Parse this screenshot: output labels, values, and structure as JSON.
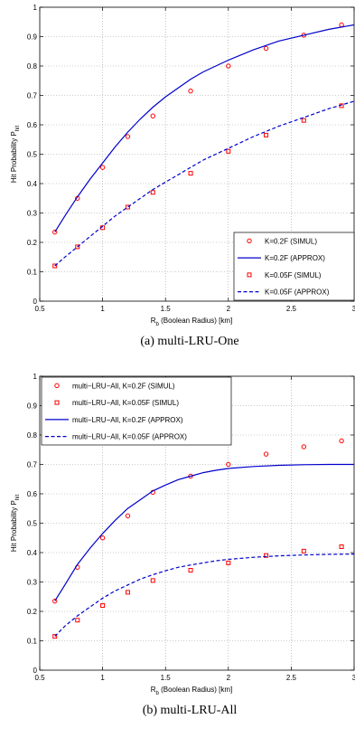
{
  "chart_data": [
    {
      "type": "line",
      "caption": "(a)  multi-LRU-One",
      "xlabel_main": "R",
      "xlabel_sub": "b",
      "xlabel_rest": " (Boolean Radius) [km]",
      "ylabel_main": "Hit Probability P",
      "ylabel_sub": "hit",
      "xlim": [
        0.5,
        3
      ],
      "ylim": [
        0,
        1
      ],
      "xticks": [
        "0.5",
        "1",
        "1.5",
        "2",
        "2.5",
        "3"
      ],
      "yticks": [
        "0",
        "0.1",
        "0.2",
        "0.3",
        "0.4",
        "0.5",
        "0.6",
        "0.7",
        "0.8",
        "0.9",
        "1"
      ],
      "grid": true,
      "legend_position": "bottom-right",
      "series": [
        {
          "name": "K=0.2F (SIMUL)",
          "kind": "circle",
          "color": "#ff0000",
          "x": [
            0.62,
            0.8,
            1.0,
            1.2,
            1.4,
            1.7,
            2.0,
            2.3,
            2.6,
            2.9
          ],
          "y": [
            0.235,
            0.35,
            0.455,
            0.56,
            0.63,
            0.715,
            0.8,
            0.86,
            0.905,
            0.94
          ]
        },
        {
          "name": "K=0.2F (APPROX)",
          "kind": "solid",
          "color": "#0000cc",
          "x": [
            0.62,
            0.7,
            0.8,
            0.9,
            1.0,
            1.1,
            1.2,
            1.3,
            1.4,
            1.5,
            1.6,
            1.7,
            1.8,
            1.9,
            2.0,
            2.2,
            2.4,
            2.6,
            2.8,
            3.0
          ],
          "y": [
            0.235,
            0.29,
            0.355,
            0.415,
            0.47,
            0.525,
            0.575,
            0.62,
            0.66,
            0.695,
            0.725,
            0.755,
            0.78,
            0.8,
            0.82,
            0.855,
            0.885,
            0.905,
            0.925,
            0.94
          ]
        },
        {
          "name": "K=0.05F (SIMUL)",
          "kind": "square",
          "color": "#ff0000",
          "x": [
            0.62,
            0.8,
            1.0,
            1.2,
            1.4,
            1.7,
            2.0,
            2.3,
            2.6,
            2.9
          ],
          "y": [
            0.12,
            0.185,
            0.25,
            0.32,
            0.37,
            0.435,
            0.51,
            0.565,
            0.615,
            0.665
          ]
        },
        {
          "name": "K=0.05F (APPROX)",
          "kind": "dashed",
          "color": "#0000cc",
          "x": [
            0.62,
            0.7,
            0.8,
            0.9,
            1.0,
            1.1,
            1.2,
            1.3,
            1.4,
            1.5,
            1.6,
            1.7,
            1.8,
            1.9,
            2.0,
            2.2,
            2.4,
            2.6,
            2.8,
            3.0
          ],
          "y": [
            0.12,
            0.15,
            0.185,
            0.22,
            0.255,
            0.29,
            0.32,
            0.35,
            0.38,
            0.405,
            0.43,
            0.455,
            0.48,
            0.5,
            0.52,
            0.56,
            0.595,
            0.625,
            0.655,
            0.68
          ]
        }
      ]
    },
    {
      "type": "line",
      "caption": "(b)  multi-LRU-All",
      "xlabel_main": "R",
      "xlabel_sub": "b",
      "xlabel_rest": " (Boolean Radius) [km]",
      "ylabel_main": "Hit Probability P",
      "ylabel_sub": "hit",
      "xlim": [
        0.5,
        3
      ],
      "ylim": [
        0,
        1
      ],
      "xticks": [
        "0.5",
        "1",
        "1.5",
        "2",
        "2.5",
        "3"
      ],
      "yticks": [
        "0",
        "0.1",
        "0.2",
        "0.3",
        "0.4",
        "0.5",
        "0.6",
        "0.7",
        "0.8",
        "0.9",
        "1"
      ],
      "grid": true,
      "legend_position": "top-left",
      "series": [
        {
          "name": "multi−LRU−All, K=0.2F (SIMUL)",
          "kind": "circle",
          "color": "#ff0000",
          "x": [
            0.62,
            0.8,
            1.0,
            1.2,
            1.4,
            1.7,
            2.0,
            2.3,
            2.6,
            2.9
          ],
          "y": [
            0.235,
            0.35,
            0.45,
            0.525,
            0.605,
            0.66,
            0.7,
            0.735,
            0.76,
            0.78
          ]
        },
        {
          "name": "multi−LRU−All, K=0.05F (SIMUL)",
          "kind": "square",
          "color": "#ff0000",
          "x": [
            0.62,
            0.8,
            1.0,
            1.2,
            1.4,
            1.7,
            2.0,
            2.3,
            2.6,
            2.9
          ],
          "y": [
            0.115,
            0.17,
            0.22,
            0.265,
            0.305,
            0.34,
            0.365,
            0.39,
            0.405,
            0.42
          ]
        },
        {
          "name": "multi−LRU−All, K=0.2F (APPROX)",
          "kind": "solid",
          "color": "#0000cc",
          "x": [
            0.62,
            0.7,
            0.8,
            0.9,
            1.0,
            1.1,
            1.2,
            1.3,
            1.4,
            1.5,
            1.6,
            1.7,
            1.8,
            1.9,
            2.0,
            2.2,
            2.4,
            2.6,
            2.8,
            3.0
          ],
          "y": [
            0.235,
            0.29,
            0.36,
            0.415,
            0.465,
            0.51,
            0.55,
            0.58,
            0.61,
            0.63,
            0.648,
            0.66,
            0.672,
            0.68,
            0.686,
            0.693,
            0.697,
            0.699,
            0.7,
            0.7
          ]
        },
        {
          "name": "multi−LRU−All, K=0.05F (APPROX)",
          "kind": "dashed",
          "color": "#0000cc",
          "x": [
            0.62,
            0.7,
            0.8,
            0.9,
            1.0,
            1.1,
            1.2,
            1.3,
            1.4,
            1.5,
            1.6,
            1.7,
            1.8,
            1.9,
            2.0,
            2.2,
            2.4,
            2.6,
            2.8,
            3.0
          ],
          "y": [
            0.115,
            0.15,
            0.185,
            0.215,
            0.245,
            0.27,
            0.29,
            0.31,
            0.325,
            0.338,
            0.35,
            0.358,
            0.365,
            0.372,
            0.377,
            0.384,
            0.389,
            0.392,
            0.394,
            0.395
          ]
        }
      ]
    }
  ]
}
